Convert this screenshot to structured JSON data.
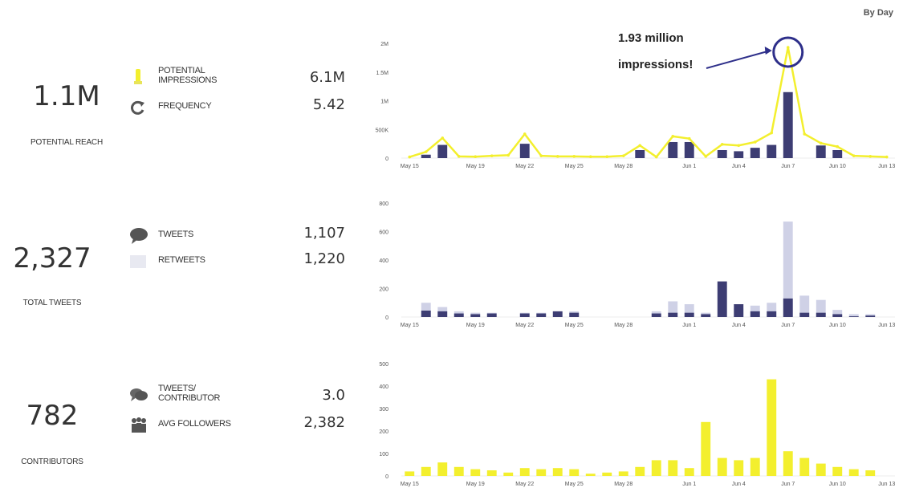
{
  "period_label": "By Day",
  "rows": [
    {
      "big_value": "1.1M",
      "big_label": "POTENTIAL REACH",
      "metrics": [
        {
          "icon": "impressions-icon",
          "label": "POTENTIAL\nIMPRESSIONS",
          "value": "6.1M"
        },
        {
          "icon": "frequency-icon",
          "label": "FREQUENCY",
          "value": "5.42"
        }
      ]
    },
    {
      "big_value": "2,327",
      "big_label": "TOTAL TWEETS",
      "metrics": [
        {
          "icon": "tweets-icon",
          "label": "TWEETS",
          "value": "1,107"
        },
        {
          "icon": "retweets-icon",
          "label": "RETWEETS",
          "value": "1,220"
        }
      ]
    },
    {
      "big_value": "782",
      "big_label": "CONTRIBUTORS",
      "metrics": [
        {
          "icon": "tweets-per-contributor-icon",
          "label": "TWEETS/\nCONTRIBUTOR",
          "value": "3.0"
        },
        {
          "icon": "avg-followers-icon",
          "label": "AVG FOLLOWERS",
          "value": "2,382"
        }
      ]
    }
  ],
  "colors": {
    "navy": "#3d3d73",
    "yellow": "#f3ef2e",
    "lavender": "#cfd1e6",
    "circle": "#2e2f8a"
  },
  "chart_data": [
    {
      "type": "bar",
      "categories": [
        "May 15",
        "May 16",
        "May 17",
        "May 18",
        "May 19",
        "May 20",
        "May 21",
        "May 22",
        "May 23",
        "May 24",
        "May 25",
        "May 26",
        "May 27",
        "May 28",
        "May 29",
        "May 30",
        "May 31",
        "Jun 1",
        "Jun 2",
        "Jun 3",
        "Jun 4",
        "Jun 5",
        "Jun 6",
        "Jun 7",
        "Jun 8",
        "Jun 9",
        "Jun 10",
        "Jun 11",
        "Jun 12",
        "Jun 13"
      ],
      "x_tick_labels": [
        "May 15",
        "May 19",
        "May 22",
        "May 25",
        "May 28",
        "Jun 1",
        "Jun 4",
        "Jun 7",
        "Jun 10",
        "Jun 13"
      ],
      "series": [
        {
          "kind": "bar",
          "color": "#3d3d73",
          "values": [
            0,
            60000,
            230000,
            0,
            0,
            0,
            0,
            250000,
            0,
            0,
            0,
            0,
            0,
            0,
            140000,
            0,
            280000,
            280000,
            0,
            140000,
            120000,
            180000,
            230000,
            1150000,
            0,
            220000,
            140000,
            0,
            0,
            0
          ]
        },
        {
          "kind": "line",
          "color": "#f3ef2e",
          "values": [
            20000,
            110000,
            350000,
            30000,
            25000,
            40000,
            50000,
            420000,
            40000,
            30000,
            30000,
            25000,
            25000,
            40000,
            220000,
            20000,
            380000,
            340000,
            30000,
            240000,
            220000,
            280000,
            440000,
            1930000,
            420000,
            260000,
            200000,
            40000,
            30000,
            20000
          ]
        }
      ],
      "y_tick_labels": [
        "0",
        "500K",
        "1M",
        "1.5M",
        "2M"
      ],
      "ylim": [
        0,
        2000000
      ],
      "annotation": {
        "text_line1": "1.93 million",
        "text_line2": "impressions!",
        "index": 23,
        "value": 1930000
      }
    },
    {
      "type": "bar",
      "categories": [
        "May 15",
        "May 16",
        "May 17",
        "May 18",
        "May 19",
        "May 20",
        "May 21",
        "May 22",
        "May 23",
        "May 24",
        "May 25",
        "May 26",
        "May 27",
        "May 28",
        "May 29",
        "May 30",
        "May 31",
        "Jun 1",
        "Jun 2",
        "Jun 3",
        "Jun 4",
        "Jun 5",
        "Jun 6",
        "Jun 7",
        "Jun 8",
        "Jun 9",
        "Jun 10",
        "Jun 11",
        "Jun 12",
        "Jun 13"
      ],
      "x_tick_labels": [
        "May 15",
        "May 19",
        "May 22",
        "May 25",
        "May 28",
        "Jun 1",
        "Jun 4",
        "Jun 7",
        "Jun 10",
        "Jun 13"
      ],
      "series": [
        {
          "kind": "bar",
          "color": "#cfd1e6",
          "values": [
            0,
            100,
            70,
            40,
            30,
            30,
            0,
            30,
            30,
            40,
            40,
            0,
            0,
            0,
            0,
            40,
            110,
            90,
            30,
            0,
            60,
            80,
            100,
            670,
            150,
            120,
            50,
            20,
            20,
            0
          ]
        },
        {
          "kind": "bar",
          "color": "#3d3d73",
          "values": [
            0,
            45,
            40,
            25,
            20,
            25,
            0,
            25,
            25,
            40,
            30,
            0,
            0,
            0,
            0,
            25,
            30,
            30,
            20,
            250,
            90,
            40,
            40,
            130,
            30,
            30,
            20,
            5,
            10,
            0
          ]
        }
      ],
      "y_tick_labels": [
        "0",
        "200",
        "400",
        "600",
        "800"
      ],
      "ylim": [
        0,
        800
      ]
    },
    {
      "type": "bar",
      "categories": [
        "May 15",
        "May 16",
        "May 17",
        "May 18",
        "May 19",
        "May 20",
        "May 21",
        "May 22",
        "May 23",
        "May 24",
        "May 25",
        "May 26",
        "May 27",
        "May 28",
        "May 29",
        "May 30",
        "May 31",
        "Jun 1",
        "Jun 2",
        "Jun 3",
        "Jun 4",
        "Jun 5",
        "Jun 6",
        "Jun 7",
        "Jun 8",
        "Jun 9",
        "Jun 10",
        "Jun 11",
        "Jun 12",
        "Jun 13"
      ],
      "x_tick_labels": [
        "May 15",
        "May 19",
        "May 22",
        "May 25",
        "May 28",
        "Jun 1",
        "Jun 4",
        "Jun 7",
        "Jun 10",
        "Jun 13"
      ],
      "series": [
        {
          "kind": "bar",
          "color": "#f3ef2e",
          "values": [
            20,
            40,
            60,
            40,
            30,
            25,
            15,
            35,
            30,
            35,
            30,
            10,
            15,
            20,
            40,
            70,
            70,
            35,
            240,
            80,
            70,
            80,
            430,
            110,
            80,
            55,
            40,
            30,
            25,
            0
          ]
        }
      ],
      "y_tick_labels": [
        "0",
        "100",
        "200",
        "300",
        "400",
        "500"
      ],
      "ylim": [
        0,
        500
      ]
    }
  ]
}
